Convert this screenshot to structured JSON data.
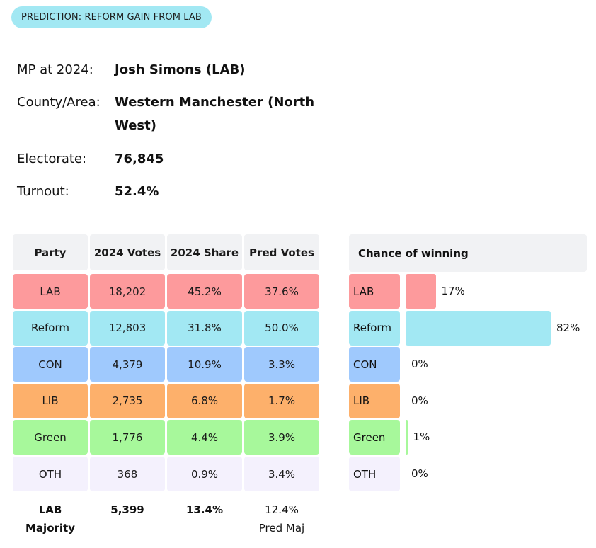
{
  "prediction_badge": "PREDICTION: REFORM GAIN FROM LAB",
  "info": [
    {
      "label": "MP at 2024:",
      "value": "Josh Simons  (LAB)"
    },
    {
      "label": "County/Area:",
      "value": "Western Manchester (North West)"
    },
    {
      "label": "Electorate:",
      "value": "76,845"
    },
    {
      "label": "Turnout:",
      "value": "52.4%"
    }
  ],
  "table": {
    "headers": [
      "Party",
      "2024 Votes",
      "2024 Share",
      "Pred Votes"
    ],
    "rows": [
      {
        "party": "LAB",
        "votes": "18,202",
        "share": "45.2%",
        "pred": "37.6%",
        "color": "#fd9a9c"
      },
      {
        "party": "Reform",
        "votes": "12,803",
        "share": "31.8%",
        "pred": "50.0%",
        "color": "#a2e8f3"
      },
      {
        "party": "CON",
        "votes": "4,379",
        "share": "10.9%",
        "pred": "3.3%",
        "color": "#9fc9fd"
      },
      {
        "party": "LIB",
        "votes": "2,735",
        "share": "6.8%",
        "pred": "1.7%",
        "color": "#fdb06b"
      },
      {
        "party": "Green",
        "votes": "1,776",
        "share": "4.4%",
        "pred": "3.9%",
        "color": "#a7f89b"
      },
      {
        "party": "OTH",
        "votes": "368",
        "share": "0.9%",
        "pred": "3.4%",
        "color": "#f4f1fd"
      }
    ],
    "footer": {
      "party_line1": "LAB",
      "party_line2": "Majority",
      "votes": "5,399",
      "share": "13.4%",
      "pred_line1": "12.4%",
      "pred_line2": "Pred Maj"
    }
  },
  "chance": {
    "title": "Chance of winning",
    "rows": [
      {
        "party": "LAB",
        "pct_label": "17%",
        "value": 17,
        "color": "#fd9a9c"
      },
      {
        "party": "Reform",
        "pct_label": "82%",
        "value": 82,
        "color": "#a2e8f3"
      },
      {
        "party": "CON",
        "pct_label": "0%",
        "value": 0,
        "color": "#9fc9fd"
      },
      {
        "party": "LIB",
        "pct_label": "0%",
        "value": 0,
        "color": "#fdb06b"
      },
      {
        "party": "Green",
        "pct_label": "1%",
        "value": 1,
        "color": "#a7f89b"
      },
      {
        "party": "OTH",
        "pct_label": "0%",
        "value": 0,
        "color": "#f4f1fd"
      }
    ]
  }
}
